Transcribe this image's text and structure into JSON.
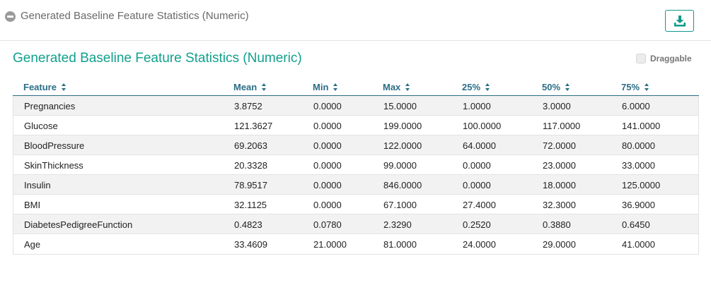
{
  "header": {
    "title": "Generated Baseline Feature Statistics (Numeric)",
    "collapse_icon": "minus-circle-icon",
    "download_icon": "download-icon"
  },
  "section": {
    "title": "Generated Baseline Feature Statistics (Numeric)",
    "draggable_label": "Draggable",
    "draggable_checked": false
  },
  "colors": {
    "accent": "#12a08d",
    "header_text": "#2a6d86"
  },
  "table": {
    "columns": [
      "Feature",
      "Mean",
      "Min",
      "Max",
      "25%",
      "50%",
      "75%"
    ],
    "rows": [
      [
        "Pregnancies",
        "3.8752",
        "0.0000",
        "15.0000",
        "1.0000",
        "3.0000",
        "6.0000"
      ],
      [
        "Glucose",
        "121.3627",
        "0.0000",
        "199.0000",
        "100.0000",
        "117.0000",
        "141.0000"
      ],
      [
        "BloodPressure",
        "69.2063",
        "0.0000",
        "122.0000",
        "64.0000",
        "72.0000",
        "80.0000"
      ],
      [
        "SkinThickness",
        "20.3328",
        "0.0000",
        "99.0000",
        "0.0000",
        "23.0000",
        "33.0000"
      ],
      [
        "Insulin",
        "78.9517",
        "0.0000",
        "846.0000",
        "0.0000",
        "18.0000",
        "125.0000"
      ],
      [
        "BMI",
        "32.1125",
        "0.0000",
        "67.1000",
        "27.4000",
        "32.3000",
        "36.9000"
      ],
      [
        "DiabetesPedigreeFunction",
        "0.4823",
        "0.0780",
        "2.3290",
        "0.2520",
        "0.3880",
        "0.6450"
      ],
      [
        "Age",
        "33.4609",
        "21.0000",
        "81.0000",
        "24.0000",
        "29.0000",
        "41.0000"
      ]
    ]
  }
}
